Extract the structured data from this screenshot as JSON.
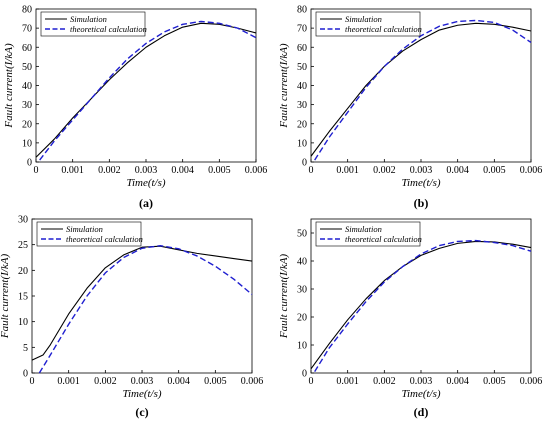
{
  "chart_data": [
    {
      "type": "line",
      "panel_label": "(a)",
      "xlabel": "Time(t/s)",
      "ylabel": "Fault current(I/kA)",
      "xlim": [
        0,
        0.006
      ],
      "ylim": [
        0,
        80
      ],
      "xticks": [
        "0",
        "0.001",
        "0.002",
        "0.003",
        "0.004",
        "0.005",
        "0.006"
      ],
      "yticks": [
        "0",
        "10",
        "20",
        "30",
        "40",
        "50",
        "60",
        "70",
        "80"
      ],
      "legend_position": "top-left",
      "grid": false,
      "series": [
        {
          "name": "Simulation",
          "style": "solid",
          "color": "#000000",
          "x": [
            0,
            0.0005,
            0.001,
            0.0015,
            0.002,
            0.0025,
            0.003,
            0.0035,
            0.004,
            0.0045,
            0.005,
            0.0055,
            0.006
          ],
          "y": [
            2.5,
            12,
            23,
            33,
            43,
            52,
            60,
            66,
            70.5,
            72.5,
            72,
            70,
            67.5
          ]
        },
        {
          "name": "theoretical calculation",
          "style": "dashed",
          "color": "#1f1fd0",
          "x": [
            0.0001,
            0.0005,
            0.001,
            0.0015,
            0.002,
            0.0025,
            0.003,
            0.0035,
            0.004,
            0.0045,
            0.005,
            0.0055,
            0.006
          ],
          "y": [
            1,
            11,
            22,
            33,
            44,
            54,
            62,
            68,
            72,
            73.5,
            72.5,
            70,
            65
          ]
        }
      ]
    },
    {
      "type": "line",
      "panel_label": "(b)",
      "xlabel": "Time(t/s)",
      "ylabel": "Fault current(I/kA)",
      "xlim": [
        0,
        0.006
      ],
      "ylim": [
        0,
        80
      ],
      "xticks": [
        "0",
        "0.001",
        "0.002",
        "0.003",
        "0.004",
        "0.005",
        "0.006"
      ],
      "yticks": [
        "0",
        "10",
        "20",
        "30",
        "40",
        "50",
        "60",
        "70",
        "80"
      ],
      "legend_position": "top-left",
      "grid": false,
      "series": [
        {
          "name": "Simulation",
          "style": "solid",
          "color": "#000000",
          "x": [
            0,
            0.0005,
            0.001,
            0.0015,
            0.002,
            0.0025,
            0.003,
            0.0035,
            0.004,
            0.0045,
            0.005,
            0.0055,
            0.006
          ],
          "y": [
            3,
            16,
            28,
            40,
            50,
            58,
            64,
            69,
            71.5,
            72.5,
            72,
            70.5,
            68.5
          ]
        },
        {
          "name": "theoretical calculation",
          "style": "dashed",
          "color": "#1f1fd0",
          "x": [
            0.0001,
            0.0005,
            0.001,
            0.0015,
            0.002,
            0.0025,
            0.003,
            0.0035,
            0.004,
            0.0045,
            0.005,
            0.0055,
            0.006
          ],
          "y": [
            1,
            13,
            26,
            39,
            50,
            59,
            66,
            71,
            73.5,
            74,
            73,
            69,
            62.5
          ]
        }
      ]
    },
    {
      "type": "line",
      "panel_label": "(c)",
      "xlabel": "Time(t/s)",
      "ylabel": "Fault current(I/kA)",
      "xlim": [
        0,
        0.006
      ],
      "ylim": [
        0,
        30
      ],
      "xticks": [
        "0",
        "0.001",
        "0.002",
        "0.003",
        "0.004",
        "0.005",
        "0.006"
      ],
      "yticks": [
        "0",
        "5",
        "10",
        "15",
        "20",
        "25",
        "30"
      ],
      "legend_position": "top-left",
      "grid": false,
      "series": [
        {
          "name": "Simulation",
          "style": "solid",
          "color": "#000000",
          "x": [
            0,
            0.0003,
            0.0005,
            0.001,
            0.0015,
            0.002,
            0.0025,
            0.003,
            0.0035,
            0.004,
            0.0045,
            0.005,
            0.0055,
            0.006
          ],
          "y": [
            2.5,
            3.5,
            5.5,
            11.5,
            16.5,
            20.5,
            23,
            24.5,
            24.7,
            24,
            23.3,
            22.8,
            22.3,
            21.8
          ]
        },
        {
          "name": "theoretical calculation",
          "style": "dashed",
          "color": "#1f1fd0",
          "x": [
            0.0002,
            0.0005,
            0.001,
            0.0015,
            0.002,
            0.0025,
            0.003,
            0.0035,
            0.004,
            0.0045,
            0.005,
            0.0055,
            0.006
          ],
          "y": [
            0,
            3.5,
            9.5,
            15,
            19.5,
            22.5,
            24.3,
            24.8,
            24.2,
            22.8,
            20.8,
            18.3,
            15.3
          ]
        }
      ]
    },
    {
      "type": "line",
      "panel_label": "(d)",
      "xlabel": "Time(t/s)",
      "ylabel": "Fault current(I/kA)",
      "xlim": [
        0,
        0.006
      ],
      "ylim": [
        0,
        55
      ],
      "xticks": [
        "0",
        "0.001",
        "0.002",
        "0.003",
        "0.004",
        "0.005",
        "0.006"
      ],
      "yticks": [
        "0",
        "10",
        "20",
        "30",
        "40",
        "50"
      ],
      "legend_position": "top-left",
      "grid": false,
      "series": [
        {
          "name": "Simulation",
          "style": "solid",
          "color": "#000000",
          "x": [
            0,
            0.0005,
            0.001,
            0.0015,
            0.002,
            0.0025,
            0.003,
            0.0035,
            0.004,
            0.0045,
            0.005,
            0.0055,
            0.006
          ],
          "y": [
            1.5,
            10.5,
            19,
            26.5,
            33,
            38,
            42,
            44.5,
            46.3,
            47,
            46.8,
            46,
            44.8
          ]
        },
        {
          "name": "theoretical calculation",
          "style": "dashed",
          "color": "#1f1fd0",
          "x": [
            0.0001,
            0.0005,
            0.001,
            0.0015,
            0.002,
            0.0025,
            0.003,
            0.0035,
            0.004,
            0.0045,
            0.005,
            0.0055,
            0.006
          ],
          "y": [
            0.5,
            9,
            17.5,
            25.5,
            32.5,
            38,
            42.5,
            45.5,
            47,
            47.3,
            46.6,
            45.5,
            43.5
          ]
        }
      ]
    }
  ]
}
